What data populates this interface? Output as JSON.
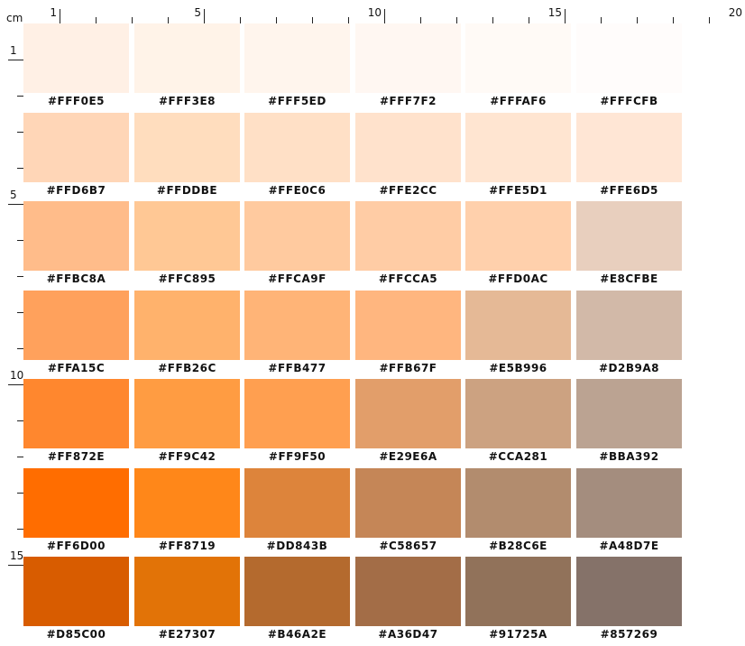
{
  "ruler": {
    "unit": "cm",
    "top_numbers": [
      "1",
      "5",
      "10",
      "15",
      "20"
    ],
    "left_numbers": [
      "1",
      "5",
      "10",
      "15"
    ]
  },
  "swatches": [
    [
      "#FFF0E5",
      "#FFF3E8",
      "#FFF5ED",
      "#FFF7F2",
      "#FFFAF6",
      "#FFFCFB"
    ],
    [
      "#FFD6B7",
      "#FFDDBE",
      "#FFE0C6",
      "#FFE2CC",
      "#FFE5D1",
      "#FFE6D5"
    ],
    [
      "#FFBC8A",
      "#FFC895",
      "#FFCA9F",
      "#FFCCA5",
      "#FFD0AC",
      "#E8CFBE"
    ],
    [
      "#FFA15C",
      "#FFB26C",
      "#FFB477",
      "#FFB67F",
      "#E5B996",
      "#D2B9A8"
    ],
    [
      "#FF872E",
      "#FF9C42",
      "#FF9F50",
      "#E29E6A",
      "#CCA281",
      "#BBA392"
    ],
    [
      "#FF6D00",
      "#FF8719",
      "#DD843B",
      "#C58657",
      "#B28C6E",
      "#A48D7E"
    ],
    [
      "#D85C00",
      "#E27307",
      "#B46A2E",
      "#A36D47",
      "#91725A",
      "#857269"
    ]
  ]
}
